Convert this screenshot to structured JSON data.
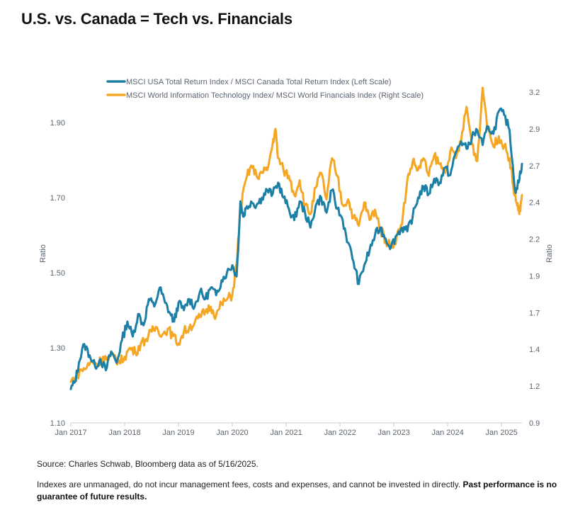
{
  "page": {
    "title": "U.S. vs. Canada = Tech vs. Financials",
    "source": "Source: Charles Schwab, Bloomberg data as of 5/16/2025.",
    "disclaimer": "Indexes are unmanaged, do not incur management fees, costs and expenses, and cannot be invested in directly.",
    "disclaimer_bold": "Past performance is no guarantee of future results."
  },
  "chart_data": {
    "type": "line",
    "title": "U.S. vs. Canada = Tech vs. Financials",
    "ylabel_left": "Ratio",
    "ylabel_right": "Ratio",
    "x_ticks": [
      "Jan 2017",
      "Jan 2018",
      "Jan 2019",
      "Jan 2020",
      "Jan 2021",
      "Jan 2022",
      "Jan 2023",
      "Jan 2024",
      "Jan 2025"
    ],
    "xlim": [
      2017.0,
      2025.38
    ],
    "ylim_left": [
      1.1,
      1.98
    ],
    "yticks_left": [
      "1.10",
      "1.30",
      "1.50",
      "1.70",
      "1.90"
    ],
    "ylim_right": [
      0.9,
      3.2
    ],
    "yticks_right": [
      "0.9",
      "1.2",
      "1.4",
      "1.7",
      "1.9",
      "2.2",
      "2.4",
      "2.7",
      "2.9",
      "3.2"
    ],
    "yticks_right_values": [
      0.9,
      1.15,
      1.4,
      1.65,
      1.9,
      2.15,
      2.4,
      2.65,
      2.9,
      3.15
    ],
    "legend_position": "top-center",
    "series": [
      {
        "name": "MSCI USA Total Return Index / MSCI Canada Total Return Index (Left Scale)",
        "axis": "left",
        "color": "#1b7fa6",
        "x": [
          2017.0,
          2017.08,
          2017.15,
          2017.25,
          2017.35,
          2017.45,
          2017.55,
          2017.65,
          2017.75,
          2017.85,
          2017.95,
          2018.05,
          2018.15,
          2018.25,
          2018.35,
          2018.45,
          2018.55,
          2018.65,
          2018.75,
          2018.85,
          2018.92,
          2019.0,
          2019.1,
          2019.2,
          2019.3,
          2019.4,
          2019.5,
          2019.6,
          2019.7,
          2019.8,
          2019.9,
          2020.0,
          2020.08,
          2020.15,
          2020.2,
          2020.25,
          2020.35,
          2020.45,
          2020.55,
          2020.65,
          2020.75,
          2020.85,
          2020.95,
          2021.05,
          2021.15,
          2021.25,
          2021.35,
          2021.45,
          2021.55,
          2021.65,
          2021.75,
          2021.85,
          2021.95,
          2022.05,
          2022.15,
          2022.25,
          2022.35,
          2022.45,
          2022.55,
          2022.65,
          2022.75,
          2022.85,
          2022.95,
          2023.05,
          2023.15,
          2023.25,
          2023.35,
          2023.45,
          2023.55,
          2023.65,
          2023.75,
          2023.85,
          2023.95,
          2024.05,
          2024.15,
          2024.25,
          2024.35,
          2024.45,
          2024.55,
          2024.65,
          2024.75,
          2024.85,
          2024.95,
          2025.05,
          2025.15,
          2025.25,
          2025.32,
          2025.38
        ],
        "values": [
          1.19,
          1.21,
          1.26,
          1.31,
          1.28,
          1.25,
          1.27,
          1.24,
          1.29,
          1.26,
          1.32,
          1.37,
          1.33,
          1.39,
          1.36,
          1.43,
          1.41,
          1.46,
          1.42,
          1.39,
          1.37,
          1.42,
          1.4,
          1.43,
          1.41,
          1.45,
          1.43,
          1.46,
          1.44,
          1.48,
          1.5,
          1.52,
          1.49,
          1.69,
          1.65,
          1.67,
          1.69,
          1.68,
          1.7,
          1.72,
          1.71,
          1.74,
          1.7,
          1.67,
          1.64,
          1.69,
          1.66,
          1.62,
          1.68,
          1.7,
          1.66,
          1.72,
          1.67,
          1.64,
          1.58,
          1.53,
          1.47,
          1.52,
          1.56,
          1.6,
          1.62,
          1.59,
          1.57,
          1.6,
          1.62,
          1.61,
          1.65,
          1.7,
          1.73,
          1.71,
          1.75,
          1.74,
          1.78,
          1.76,
          1.82,
          1.85,
          1.83,
          1.86,
          1.88,
          1.84,
          1.89,
          1.87,
          1.93,
          1.92,
          1.88,
          1.72,
          1.74,
          1.79
        ]
      },
      {
        "name": "MSCI World Information Technology Index/ MSCI World Financials Index (Right Scale)",
        "axis": "right",
        "color": "#f5a623",
        "x": [
          2017.0,
          2017.1,
          2017.2,
          2017.3,
          2017.4,
          2017.5,
          2017.6,
          2017.7,
          2017.8,
          2017.9,
          2018.0,
          2018.1,
          2018.2,
          2018.3,
          2018.4,
          2018.5,
          2018.6,
          2018.7,
          2018.8,
          2018.9,
          2019.0,
          2019.1,
          2019.2,
          2019.3,
          2019.4,
          2019.5,
          2019.6,
          2019.7,
          2019.8,
          2019.9,
          2020.0,
          2020.08,
          2020.15,
          2020.25,
          2020.35,
          2020.45,
          2020.55,
          2020.65,
          2020.75,
          2020.8,
          2020.85,
          2020.95,
          2021.05,
          2021.15,
          2021.25,
          2021.35,
          2021.45,
          2021.55,
          2021.65,
          2021.75,
          2021.85,
          2021.95,
          2022.05,
          2022.15,
          2022.25,
          2022.35,
          2022.45,
          2022.55,
          2022.65,
          2022.75,
          2022.85,
          2022.95,
          2023.05,
          2023.15,
          2023.25,
          2023.35,
          2023.45,
          2023.55,
          2023.65,
          2023.75,
          2023.85,
          2023.95,
          2024.05,
          2024.15,
          2024.25,
          2024.35,
          2024.45,
          2024.55,
          2024.65,
          2024.75,
          2024.85,
          2024.95,
          2025.05,
          2025.15,
          2025.22,
          2025.28,
          2025.33,
          2025.38
        ],
        "values": [
          1.18,
          1.22,
          1.26,
          1.28,
          1.32,
          1.3,
          1.35,
          1.33,
          1.36,
          1.31,
          1.35,
          1.41,
          1.38,
          1.44,
          1.47,
          1.52,
          1.55,
          1.5,
          1.54,
          1.49,
          1.44,
          1.52,
          1.55,
          1.58,
          1.62,
          1.66,
          1.69,
          1.63,
          1.71,
          1.74,
          1.77,
          1.98,
          2.35,
          2.55,
          2.65,
          2.58,
          2.6,
          2.62,
          2.8,
          2.9,
          2.7,
          2.62,
          2.58,
          2.45,
          2.55,
          2.38,
          2.32,
          2.5,
          2.6,
          2.42,
          2.7,
          2.58,
          2.38,
          2.42,
          2.3,
          2.24,
          2.4,
          2.28,
          2.35,
          2.22,
          2.14,
          2.1,
          2.16,
          2.25,
          2.55,
          2.68,
          2.62,
          2.7,
          2.58,
          2.72,
          2.66,
          2.6,
          2.75,
          2.7,
          2.82,
          3.05,
          2.8,
          2.68,
          3.18,
          2.9,
          2.78,
          2.85,
          2.78,
          2.7,
          2.5,
          2.4,
          2.32,
          2.45
        ]
      }
    ]
  }
}
